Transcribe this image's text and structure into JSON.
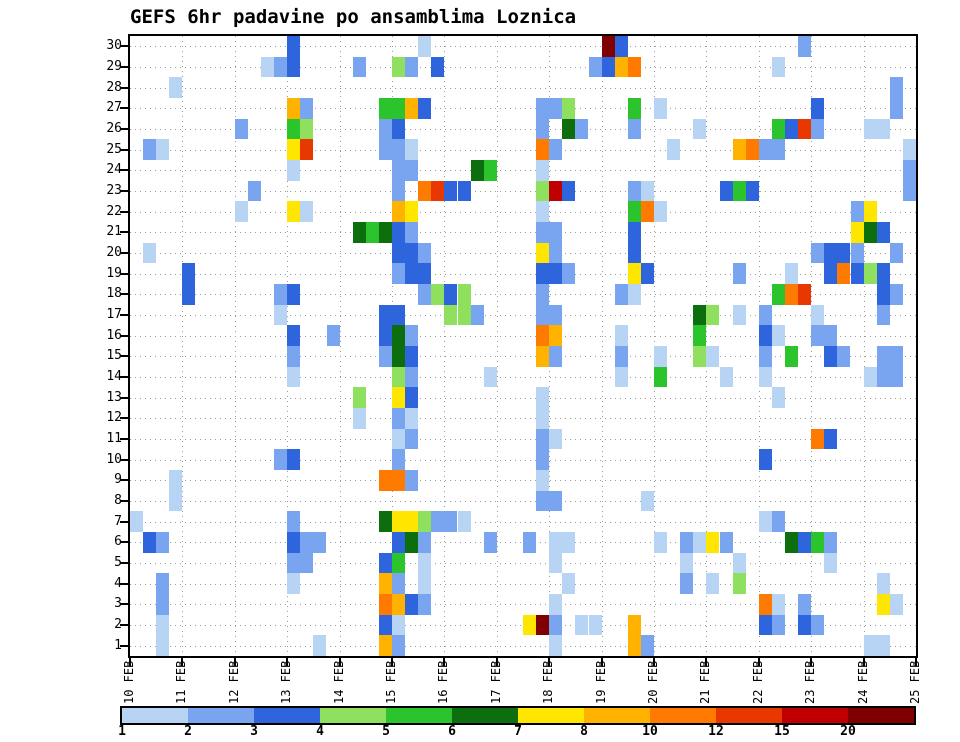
{
  "title": "GEFS 6hr padavine po ansamblima Loznica",
  "chart_data": {
    "type": "heatmap",
    "title": "GEFS 6hr padavine po ansamblima Loznica",
    "xlabel": "",
    "ylabel": "",
    "grid": "dotted",
    "legend_position": "bottom",
    "x_categories": [
      "10 FEB",
      "11 FEB",
      "12 FEB",
      "13 FEB",
      "14 FEB",
      "15 FEB",
      "16 FEB",
      "17 FEB",
      "18 FEB",
      "19 FEB",
      "20 FEB",
      "21 FEB",
      "22 FEB",
      "23 FEB",
      "24 FEB",
      "25 FEB"
    ],
    "steps_per_day": 4,
    "n_cols": 60,
    "rows": {
      "min": 1,
      "max": 30
    },
    "scale": {
      "boundaries": [
        1,
        2,
        3,
        4,
        5,
        6,
        7,
        8,
        10,
        12,
        15,
        20
      ],
      "colors": [
        "#b8d4f5",
        "#79a5f0",
        "#2e64dc",
        "#8ee05e",
        "#2cc42c",
        "#0c6e0c",
        "#ffe600",
        "#ffb300",
        "#ff7a00",
        "#e83800",
        "#c00000",
        "#7e0000"
      ]
    },
    "cells": [
      [
        30,
        12,
        3
      ],
      [
        30,
        22,
        1
      ],
      [
        30,
        36,
        20
      ],
      [
        30,
        37,
        3
      ],
      [
        30,
        51,
        2
      ],
      [
        29,
        10,
        1
      ],
      [
        29,
        11,
        2
      ],
      [
        29,
        12,
        3
      ],
      [
        29,
        17,
        2
      ],
      [
        29,
        20,
        4
      ],
      [
        29,
        21,
        2
      ],
      [
        29,
        23,
        3
      ],
      [
        29,
        35,
        2
      ],
      [
        29,
        36,
        3
      ],
      [
        29,
        37,
        8
      ],
      [
        29,
        38,
        10
      ],
      [
        29,
        49,
        1
      ],
      [
        28,
        3,
        1
      ],
      [
        28,
        58,
        2
      ],
      [
        27,
        12,
        8
      ],
      [
        27,
        13,
        2
      ],
      [
        27,
        19,
        5
      ],
      [
        27,
        20,
        5
      ],
      [
        27,
        21,
        8
      ],
      [
        27,
        22,
        3
      ],
      [
        27,
        31,
        2
      ],
      [
        27,
        32,
        2
      ],
      [
        27,
        33,
        4
      ],
      [
        27,
        38,
        5
      ],
      [
        27,
        40,
        1
      ],
      [
        27,
        52,
        3
      ],
      [
        27,
        58,
        2
      ],
      [
        26,
        8,
        2
      ],
      [
        26,
        12,
        5
      ],
      [
        26,
        13,
        4
      ],
      [
        26,
        19,
        2
      ],
      [
        26,
        20,
        3
      ],
      [
        26,
        31,
        2
      ],
      [
        26,
        33,
        6
      ],
      [
        26,
        34,
        2
      ],
      [
        26,
        38,
        2
      ],
      [
        26,
        43,
        1
      ],
      [
        26,
        49,
        5
      ],
      [
        26,
        50,
        3
      ],
      [
        26,
        51,
        12
      ],
      [
        26,
        52,
        2
      ],
      [
        26,
        56,
        1
      ],
      [
        26,
        57,
        1
      ],
      [
        25,
        1,
        2
      ],
      [
        25,
        2,
        1
      ],
      [
        25,
        12,
        7
      ],
      [
        25,
        13,
        12
      ],
      [
        25,
        19,
        2
      ],
      [
        25,
        20,
        2
      ],
      [
        25,
        21,
        1
      ],
      [
        25,
        31,
        10
      ],
      [
        25,
        32,
        2
      ],
      [
        25,
        41,
        1
      ],
      [
        25,
        46,
        8
      ],
      [
        25,
        47,
        10
      ],
      [
        25,
        48,
        2
      ],
      [
        25,
        49,
        2
      ],
      [
        25,
        59,
        1
      ],
      [
        24,
        12,
        1
      ],
      [
        24,
        20,
        2
      ],
      [
        24,
        21,
        2
      ],
      [
        24,
        26,
        6
      ],
      [
        24,
        27,
        5
      ],
      [
        24,
        31,
        1
      ],
      [
        24,
        59,
        2
      ],
      [
        23,
        9,
        2
      ],
      [
        23,
        20,
        2
      ],
      [
        23,
        22,
        10
      ],
      [
        23,
        23,
        12
      ],
      [
        23,
        24,
        3
      ],
      [
        23,
        25,
        3
      ],
      [
        23,
        31,
        4
      ],
      [
        23,
        32,
        15
      ],
      [
        23,
        33,
        3
      ],
      [
        23,
        38,
        2
      ],
      [
        23,
        39,
        1
      ],
      [
        23,
        45,
        3
      ],
      [
        23,
        46,
        5
      ],
      [
        23,
        47,
        3
      ],
      [
        23,
        59,
        2
      ],
      [
        22,
        8,
        1
      ],
      [
        22,
        12,
        7
      ],
      [
        22,
        13,
        1
      ],
      [
        22,
        20,
        8
      ],
      [
        22,
        21,
        7
      ],
      [
        22,
        31,
        1
      ],
      [
        22,
        38,
        5
      ],
      [
        22,
        39,
        10
      ],
      [
        22,
        40,
        1
      ],
      [
        22,
        55,
        2
      ],
      [
        22,
        56,
        7
      ],
      [
        21,
        17,
        6
      ],
      [
        21,
        18,
        5
      ],
      [
        21,
        19,
        6
      ],
      [
        21,
        20,
        3
      ],
      [
        21,
        21,
        2
      ],
      [
        21,
        31,
        2
      ],
      [
        21,
        32,
        2
      ],
      [
        21,
        38,
        3
      ],
      [
        21,
        55,
        7
      ],
      [
        21,
        56,
        6
      ],
      [
        21,
        57,
        3
      ],
      [
        20,
        1,
        1
      ],
      [
        20,
        20,
        3
      ],
      [
        20,
        21,
        3
      ],
      [
        20,
        22,
        2
      ],
      [
        20,
        31,
        7
      ],
      [
        20,
        32,
        2
      ],
      [
        20,
        38,
        3
      ],
      [
        20,
        52,
        2
      ],
      [
        20,
        53,
        3
      ],
      [
        20,
        54,
        3
      ],
      [
        20,
        55,
        2
      ],
      [
        20,
        58,
        2
      ],
      [
        19,
        4,
        3
      ],
      [
        19,
        20,
        2
      ],
      [
        19,
        21,
        3
      ],
      [
        19,
        22,
        3
      ],
      [
        19,
        31,
        3
      ],
      [
        19,
        32,
        3
      ],
      [
        19,
        33,
        2
      ],
      [
        19,
        38,
        7
      ],
      [
        19,
        39,
        3
      ],
      [
        19,
        46,
        2
      ],
      [
        19,
        50,
        1
      ],
      [
        19,
        53,
        3
      ],
      [
        19,
        54,
        10
      ],
      [
        19,
        55,
        3
      ],
      [
        19,
        56,
        4
      ],
      [
        19,
        57,
        3
      ],
      [
        18,
        4,
        3
      ],
      [
        18,
        11,
        2
      ],
      [
        18,
        12,
        3
      ],
      [
        18,
        22,
        2
      ],
      [
        18,
        23,
        4
      ],
      [
        18,
        24,
        3
      ],
      [
        18,
        25,
        4
      ],
      [
        18,
        31,
        2
      ],
      [
        18,
        37,
        2
      ],
      [
        18,
        38,
        1
      ],
      [
        18,
        49,
        5
      ],
      [
        18,
        50,
        10
      ],
      [
        18,
        51,
        12
      ],
      [
        18,
        57,
        3
      ],
      [
        18,
        58,
        2
      ],
      [
        17,
        11,
        1
      ],
      [
        17,
        19,
        3
      ],
      [
        17,
        20,
        3
      ],
      [
        17,
        24,
        4
      ],
      [
        17,
        25,
        4
      ],
      [
        17,
        26,
        2
      ],
      [
        17,
        31,
        2
      ],
      [
        17,
        32,
        2
      ],
      [
        17,
        43,
        6
      ],
      [
        17,
        44,
        4
      ],
      [
        17,
        46,
        1
      ],
      [
        17,
        48,
        2
      ],
      [
        17,
        52,
        1
      ],
      [
        17,
        57,
        2
      ],
      [
        16,
        12,
        3
      ],
      [
        16,
        15,
        2
      ],
      [
        16,
        19,
        3
      ],
      [
        16,
        20,
        6
      ],
      [
        16,
        21,
        2
      ],
      [
        16,
        31,
        10
      ],
      [
        16,
        32,
        8
      ],
      [
        16,
        37,
        1
      ],
      [
        16,
        43,
        5
      ],
      [
        16,
        48,
        3
      ],
      [
        16,
        49,
        1
      ],
      [
        16,
        52,
        2
      ],
      [
        16,
        53,
        2
      ],
      [
        15,
        12,
        2
      ],
      [
        15,
        19,
        2
      ],
      [
        15,
        20,
        6
      ],
      [
        15,
        21,
        3
      ],
      [
        15,
        31,
        8
      ],
      [
        15,
        32,
        2
      ],
      [
        15,
        37,
        2
      ],
      [
        15,
        40,
        1
      ],
      [
        15,
        43,
        4
      ],
      [
        15,
        44,
        1
      ],
      [
        15,
        48,
        2
      ],
      [
        15,
        50,
        5
      ],
      [
        15,
        53,
        3
      ],
      [
        15,
        54,
        2
      ],
      [
        15,
        57,
        2
      ],
      [
        15,
        58,
        2
      ],
      [
        14,
        12,
        1
      ],
      [
        14,
        20,
        4
      ],
      [
        14,
        21,
        2
      ],
      [
        14,
        27,
        1
      ],
      [
        14,
        37,
        1
      ],
      [
        14,
        40,
        5
      ],
      [
        14,
        45,
        1
      ],
      [
        14,
        48,
        1
      ],
      [
        14,
        56,
        1
      ],
      [
        14,
        57,
        2
      ],
      [
        14,
        58,
        2
      ],
      [
        13,
        17,
        4
      ],
      [
        13,
        20,
        7
      ],
      [
        13,
        21,
        3
      ],
      [
        13,
        31,
        1
      ],
      [
        13,
        49,
        1
      ],
      [
        12,
        17,
        1
      ],
      [
        12,
        20,
        2
      ],
      [
        12,
        21,
        1
      ],
      [
        12,
        31,
        1
      ],
      [
        11,
        20,
        1
      ],
      [
        11,
        21,
        2
      ],
      [
        11,
        31,
        2
      ],
      [
        11,
        32,
        1
      ],
      [
        11,
        52,
        10
      ],
      [
        11,
        53,
        3
      ],
      [
        10,
        11,
        2
      ],
      [
        10,
        12,
        3
      ],
      [
        10,
        20,
        2
      ],
      [
        10,
        31,
        2
      ],
      [
        10,
        48,
        3
      ],
      [
        9,
        3,
        1
      ],
      [
        9,
        19,
        10
      ],
      [
        9,
        20,
        10
      ],
      [
        9,
        21,
        2
      ],
      [
        9,
        31,
        1
      ],
      [
        8,
        3,
        1
      ],
      [
        8,
        31,
        2
      ],
      [
        8,
        32,
        2
      ],
      [
        8,
        39,
        1
      ],
      [
        7,
        0,
        1
      ],
      [
        7,
        12,
        2
      ],
      [
        7,
        19,
        6
      ],
      [
        7,
        20,
        7
      ],
      [
        7,
        21,
        7
      ],
      [
        7,
        22,
        4
      ],
      [
        7,
        23,
        2
      ],
      [
        7,
        24,
        2
      ],
      [
        7,
        25,
        1
      ],
      [
        7,
        48,
        1
      ],
      [
        7,
        49,
        2
      ],
      [
        6,
        1,
        3
      ],
      [
        6,
        2,
        2
      ],
      [
        6,
        12,
        3
      ],
      [
        6,
        13,
        2
      ],
      [
        6,
        14,
        2
      ],
      [
        6,
        20,
        3
      ],
      [
        6,
        21,
        6
      ],
      [
        6,
        22,
        2
      ],
      [
        6,
        27,
        2
      ],
      [
        6,
        30,
        2
      ],
      [
        6,
        32,
        1
      ],
      [
        6,
        33,
        1
      ],
      [
        6,
        40,
        1
      ],
      [
        6,
        42,
        2
      ],
      [
        6,
        43,
        1
      ],
      [
        6,
        44,
        7
      ],
      [
        6,
        45,
        2
      ],
      [
        6,
        50,
        6
      ],
      [
        6,
        51,
        3
      ],
      [
        6,
        52,
        5
      ],
      [
        6,
        53,
        2
      ],
      [
        5,
        12,
        2
      ],
      [
        5,
        13,
        2
      ],
      [
        5,
        19,
        3
      ],
      [
        5,
        20,
        5
      ],
      [
        5,
        22,
        1
      ],
      [
        5,
        32,
        1
      ],
      [
        5,
        42,
        1
      ],
      [
        5,
        46,
        1
      ],
      [
        5,
        53,
        1
      ],
      [
        4,
        2,
        2
      ],
      [
        4,
        12,
        1
      ],
      [
        4,
        19,
        8
      ],
      [
        4,
        20,
        2
      ],
      [
        4,
        22,
        1
      ],
      [
        4,
        33,
        1
      ],
      [
        4,
        42,
        2
      ],
      [
        4,
        44,
        1
      ],
      [
        4,
        46,
        4
      ],
      [
        4,
        57,
        1
      ],
      [
        3,
        2,
        2
      ],
      [
        3,
        19,
        10
      ],
      [
        3,
        20,
        8
      ],
      [
        3,
        21,
        3
      ],
      [
        3,
        22,
        2
      ],
      [
        3,
        32,
        1
      ],
      [
        3,
        48,
        10
      ],
      [
        3,
        49,
        1
      ],
      [
        3,
        51,
        2
      ],
      [
        3,
        57,
        7
      ],
      [
        3,
        58,
        1
      ],
      [
        2,
        2,
        1
      ],
      [
        2,
        19,
        3
      ],
      [
        2,
        20,
        1
      ],
      [
        2,
        30,
        7
      ],
      [
        2,
        31,
        20
      ],
      [
        2,
        32,
        2
      ],
      [
        2,
        34,
        1
      ],
      [
        2,
        35,
        1
      ],
      [
        2,
        38,
        8
      ],
      [
        2,
        48,
        3
      ],
      [
        2,
        49,
        2
      ],
      [
        2,
        51,
        3
      ],
      [
        2,
        52,
        2
      ],
      [
        1,
        2,
        1
      ],
      [
        1,
        14,
        1
      ],
      [
        1,
        19,
        8
      ],
      [
        1,
        20,
        2
      ],
      [
        1,
        32,
        1
      ],
      [
        1,
        38,
        8
      ],
      [
        1,
        39,
        2
      ],
      [
        1,
        56,
        1
      ],
      [
        1,
        57,
        1
      ]
    ]
  },
  "colorbar": {
    "labels": [
      "1",
      "2",
      "3",
      "4",
      "5",
      "6",
      "7",
      "8",
      "10",
      "12",
      "15",
      "20"
    ]
  }
}
